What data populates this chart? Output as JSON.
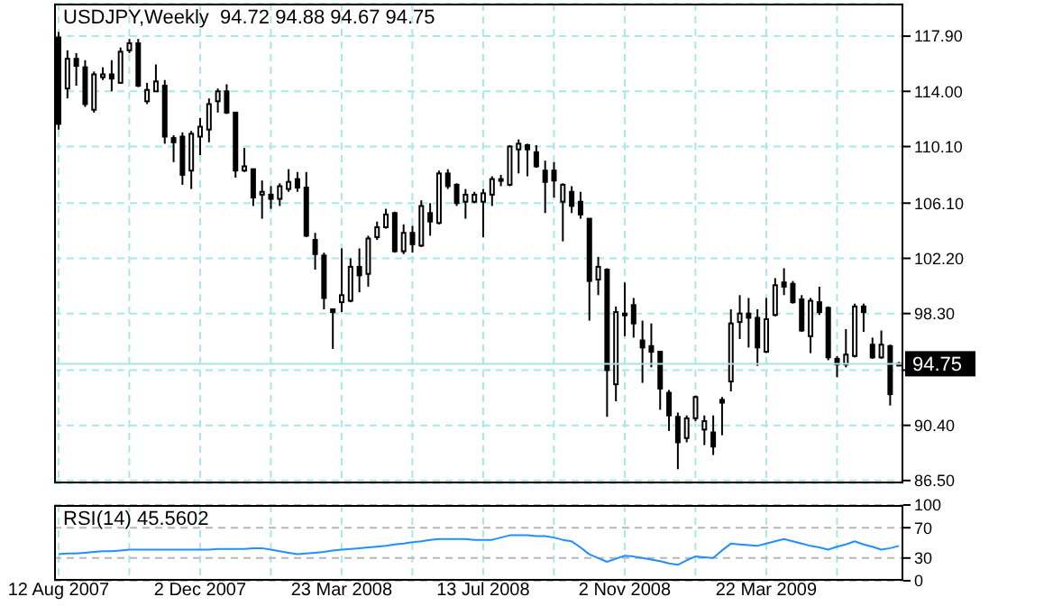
{
  "chart_data": [
    {
      "type": "candlestick",
      "title": "USDJPY,Weekly  94.72 94.88 94.67 94.75",
      "color": "#000000",
      "grid": true,
      "tick_labels": "y",
      "categories": [
        null,
        null,
        null,
        null,
        null,
        null,
        null,
        null,
        null,
        null,
        null,
        null,
        null,
        null,
        null,
        null,
        null,
        null,
        null,
        null,
        null,
        null,
        null,
        null,
        null,
        null,
        null,
        null,
        null,
        null,
        null,
        null,
        null,
        null,
        null,
        null,
        null,
        null,
        null,
        null,
        null,
        null,
        null,
        null,
        null,
        null,
        null,
        null,
        null,
        null,
        null,
        null,
        null,
        null,
        null,
        null,
        null,
        null,
        null,
        null,
        null,
        null,
        null,
        null,
        null,
        null,
        null,
        null,
        null,
        null,
        null,
        null,
        null,
        null,
        null,
        null,
        null,
        null,
        null,
        null,
        null,
        null,
        null,
        null,
        null,
        null,
        null,
        null,
        null,
        null,
        null,
        null,
        null,
        null,
        null,
        null
      ],
      "ohlc": [
        [
          117.8,
          118.2,
          111.3,
          111.7
        ],
        [
          114.2,
          116.9,
          113.5,
          116.3
        ],
        [
          116.3,
          116.7,
          114.4,
          115.8
        ],
        [
          115.7,
          116.2,
          112.9,
          113.1
        ],
        [
          112.7,
          115.4,
          112.5,
          115.2
        ],
        [
          115.0,
          115.7,
          114.8,
          115.2
        ],
        [
          115.2,
          116.2,
          114.0,
          114.9
        ],
        [
          114.6,
          117.1,
          114.6,
          116.8
        ],
        [
          116.9,
          117.7,
          116.7,
          117.4
        ],
        [
          117.4,
          117.7,
          114.3,
          114.4
        ],
        [
          113.3,
          114.6,
          113.1,
          114.1
        ],
        [
          114.0,
          115.9,
          114.0,
          114.7
        ],
        [
          114.4,
          114.8,
          110.3,
          110.8
        ],
        [
          110.7,
          110.9,
          109.0,
          110.4
        ],
        [
          110.8,
          111.1,
          107.4,
          108.1
        ],
        [
          108.4,
          111.2,
          107.1,
          111.0
        ],
        [
          110.8,
          112.1,
          109.5,
          111.5
        ],
        [
          111.3,
          113.5,
          110.4,
          113.1
        ],
        [
          113.3,
          114.2,
          112.5,
          114.0
        ],
        [
          114.0,
          114.5,
          112.4,
          112.5
        ],
        [
          112.5,
          112.5,
          107.9,
          108.4
        ],
        [
          108.4,
          110.0,
          108.3,
          108.7
        ],
        [
          108.5,
          108.5,
          105.9,
          106.5
        ],
        [
          106.7,
          107.7,
          105.0,
          106.9
        ],
        [
          106.7,
          107.3,
          105.7,
          106.4
        ],
        [
          106.4,
          107.5,
          105.9,
          107.3
        ],
        [
          107.1,
          108.5,
          106.9,
          107.6
        ],
        [
          107.8,
          108.3,
          106.9,
          107.2
        ],
        [
          107.2,
          108.3,
          103.7,
          103.8
        ],
        [
          103.5,
          104.0,
          101.4,
          102.5
        ],
        [
          102.4,
          102.6,
          98.6,
          99.4
        ],
        [
          98.6,
          98.6,
          95.8,
          98.4
        ],
        [
          99.1,
          102.9,
          98.4,
          99.6
        ],
        [
          99.2,
          102.2,
          99.1,
          101.6
        ],
        [
          101.6,
          102.9,
          99.8,
          101.0
        ],
        [
          101.1,
          103.8,
          100.2,
          103.6
        ],
        [
          103.7,
          104.8,
          103.5,
          104.4
        ],
        [
          104.4,
          105.7,
          104.3,
          105.3
        ],
        [
          105.4,
          105.5,
          102.6,
          102.7
        ],
        [
          102.7,
          104.6,
          102.5,
          104.0
        ],
        [
          104.0,
          104.5,
          102.6,
          103.2
        ],
        [
          103.1,
          106.3,
          103.0,
          105.9
        ],
        [
          105.4,
          106.1,
          103.8,
          104.8
        ],
        [
          104.7,
          108.4,
          104.6,
          108.2
        ],
        [
          108.2,
          108.5,
          107.1,
          107.3
        ],
        [
          107.4,
          107.5,
          105.9,
          106.1
        ],
        [
          106.2,
          107.1,
          105.0,
          106.7
        ],
        [
          106.2,
          106.9,
          106.1,
          106.7
        ],
        [
          106.2,
          107.1,
          103.7,
          106.8
        ],
        [
          106.7,
          108.0,
          105.9,
          107.8
        ],
        [
          107.7,
          108.1,
          107.3,
          107.8
        ],
        [
          107.4,
          110.2,
          107.3,
          110.1
        ],
        [
          109.9,
          110.6,
          108.2,
          110.3
        ],
        [
          110.2,
          110.3,
          108.0,
          109.9
        ],
        [
          109.7,
          110.2,
          108.6,
          108.7
        ],
        [
          108.4,
          109.1,
          105.4,
          107.6
        ],
        [
          108.4,
          109.0,
          106.5,
          107.7
        ],
        [
          106.2,
          107.5,
          103.4,
          107.4
        ],
        [
          106.9,
          107.3,
          105.4,
          105.9
        ],
        [
          106.2,
          106.9,
          105.0,
          105.3
        ],
        [
          105.0,
          105.0,
          97.8,
          100.6
        ],
        [
          100.7,
          102.3,
          99.6,
          101.6
        ],
        [
          101.4,
          101.5,
          91.0,
          94.3
        ],
        [
          93.3,
          98.8,
          92.1,
          98.4
        ],
        [
          98.3,
          100.5,
          96.7,
          98.2
        ],
        [
          98.9,
          99.4,
          96.6,
          97.6
        ],
        [
          96.4,
          97.8,
          93.4,
          95.9
        ],
        [
          96.0,
          97.6,
          94.5,
          95.6
        ],
        [
          95.6,
          95.6,
          91.5,
          93.0
        ],
        [
          92.7,
          92.9,
          90.0,
          91.1
        ],
        [
          91.0,
          91.3,
          87.3,
          89.2
        ],
        [
          89.5,
          91.1,
          89.2,
          90.9
        ],
        [
          90.9,
          92.5,
          90.7,
          92.4
        ],
        [
          90.1,
          91.1,
          89.0,
          90.7
        ],
        [
          89.9,
          91.1,
          88.3,
          88.9
        ],
        [
          92.2,
          92.4,
          89.7,
          92.0
        ],
        [
          93.5,
          98.6,
          92.8,
          97.6
        ],
        [
          97.7,
          99.6,
          96.5,
          98.3
        ],
        [
          98.3,
          99.4,
          95.9,
          98.0
        ],
        [
          98.0,
          98.6,
          94.6,
          95.9
        ],
        [
          95.6,
          99.4,
          95.5,
          97.9
        ],
        [
          98.2,
          100.8,
          98.1,
          100.3
        ],
        [
          100.5,
          101.5,
          99.6,
          100.2
        ],
        [
          100.4,
          100.6,
          99.0,
          99.1
        ],
        [
          99.3,
          99.6,
          97.0,
          97.1
        ],
        [
          96.7,
          99.4,
          95.5,
          99.2
        ],
        [
          99.1,
          100.2,
          98.2,
          98.4
        ],
        [
          98.7,
          98.8,
          95.0,
          95.2
        ],
        [
          95.1,
          95.3,
          93.8,
          94.7
        ],
        [
          94.7,
          97.2,
          94.5,
          95.4
        ],
        [
          95.3,
          99.0,
          95.2,
          98.8
        ],
        [
          98.8,
          99.0,
          97.0,
          98.4
        ],
        [
          96.1,
          96.6,
          95.1,
          95.2
        ],
        [
          95.2,
          97.1,
          95.1,
          96.1
        ],
        [
          96.0,
          96.1,
          91.8,
          92.6
        ],
        [
          94.72,
          94.88,
          94.67,
          94.75
        ]
      ],
      "ylim": [
        86.3,
        120.2
      ],
      "yticks": [
        {
          "value": 86.5,
          "label": "86.50"
        },
        {
          "value": 90.4,
          "label": "90.40"
        },
        {
          "value": 94.3,
          "label": null
        },
        {
          "value": 98.3,
          "label": "98.30"
        },
        {
          "value": 102.2,
          "label": "102.20"
        },
        {
          "value": 106.1,
          "label": "106.10"
        },
        {
          "value": 110.1,
          "label": "110.10"
        },
        {
          "value": 114.0,
          "label": "114.00"
        },
        {
          "value": 117.9,
          "label": "117.90"
        }
      ],
      "ref_lines": [
        {
          "axis": "y",
          "value": 94.75,
          "label": "94.75",
          "color": "#a8e4e4"
        }
      ]
    },
    {
      "type": "line",
      "title": "RSI(14) 45.5602",
      "grid": true,
      "marker": "none",
      "categories": [
        "12 Aug 2007",
        null,
        null,
        null,
        null,
        null,
        null,
        null,
        null,
        null,
        null,
        null,
        null,
        null,
        null,
        null,
        "2 Dec 2007",
        null,
        null,
        null,
        null,
        null,
        null,
        null,
        null,
        null,
        null,
        null,
        null,
        null,
        null,
        null,
        "23 Mar 2008",
        null,
        null,
        null,
        null,
        null,
        null,
        null,
        null,
        null,
        null,
        null,
        null,
        null,
        null,
        null,
        "13 Jul 2008",
        null,
        null,
        null,
        null,
        null,
        null,
        null,
        null,
        null,
        null,
        null,
        null,
        null,
        null,
        null,
        "2 Nov 2008",
        null,
        null,
        null,
        null,
        null,
        null,
        null,
        null,
        null,
        null,
        null,
        null,
        null,
        null,
        null,
        "22 Mar 2009",
        null,
        null,
        null,
        null,
        null,
        null,
        null,
        null,
        null,
        null,
        null,
        null,
        null,
        null,
        null
      ],
      "series": [
        {
          "color": "#1e90ff",
          "values": [
            35,
            36,
            36,
            37,
            38,
            39,
            39,
            40,
            41,
            41,
            41,
            41,
            41,
            41,
            41,
            41,
            41,
            41,
            42,
            42,
            42,
            42,
            43,
            43,
            41,
            39,
            37,
            35,
            36,
            37,
            38,
            40,
            41,
            42,
            43,
            44,
            45,
            46,
            48,
            49,
            51,
            52,
            54,
            55,
            55,
            55,
            55,
            54,
            54,
            54,
            57,
            60,
            60,
            60,
            59,
            59,
            57,
            54,
            52,
            44,
            35,
            30,
            25,
            29,
            33,
            32,
            30,
            28,
            26,
            23,
            21,
            27,
            32,
            31,
            30,
            40,
            49,
            48,
            47,
            46,
            49,
            52,
            55,
            52,
            49,
            46,
            44,
            41,
            45,
            48,
            52,
            48,
            45,
            41,
            43,
            46
          ]
        }
      ],
      "ylim": [
        0,
        100
      ],
      "yticks": [
        0,
        30,
        70,
        100
      ]
    }
  ]
}
